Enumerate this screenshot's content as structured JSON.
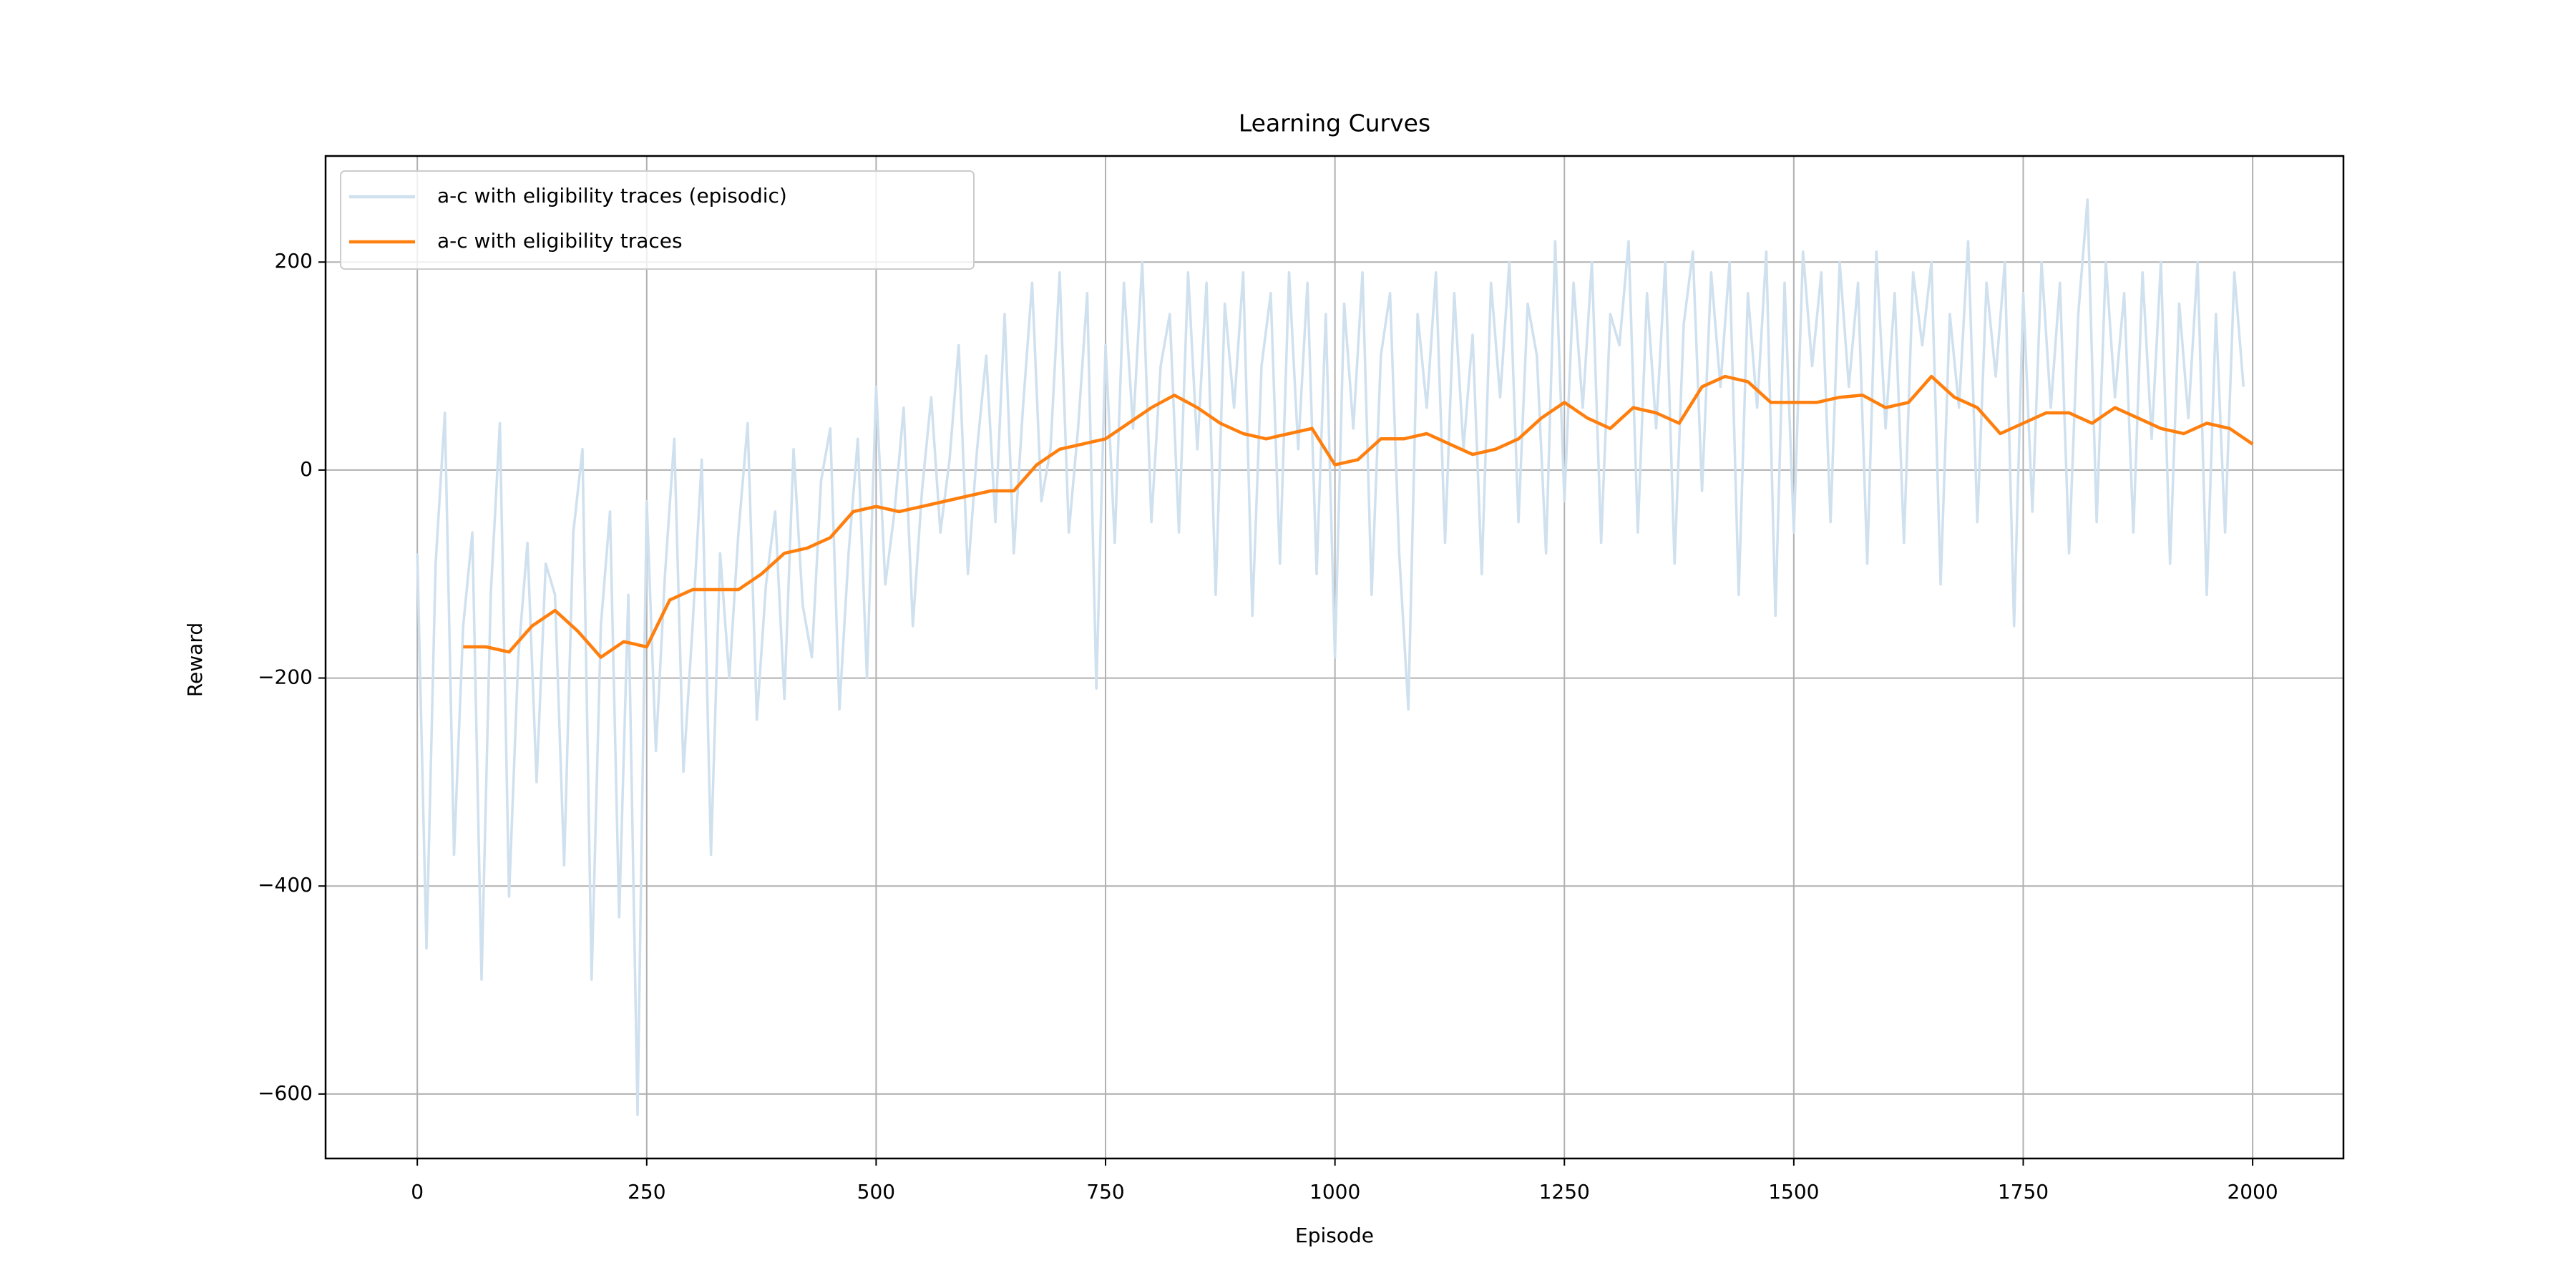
{
  "chart_data": {
    "type": "line",
    "title": "Learning Curves",
    "x_label": "Episode",
    "y_label": "Reward",
    "xlim": [
      -99.95,
      2098.95
    ],
    "ylim": [
      -662,
      302
    ],
    "xticks": [
      0,
      250,
      500,
      750,
      1000,
      1250,
      1500,
      1750,
      2000
    ],
    "yticks": [
      {
        "value": -600,
        "label": "−600"
      },
      {
        "value": -400,
        "label": "−400"
      },
      {
        "value": -200,
        "label": "−200"
      },
      0,
      200
    ],
    "grid": true,
    "legend": "upper left",
    "series": [
      {
        "name": "a-c with eligibility traces (episodic)",
        "color": "#cfe0ee",
        "x": [
          0,
          10,
          20,
          30,
          40,
          50,
          60,
          70,
          80,
          90,
          100,
          110,
          120,
          130,
          140,
          150,
          160,
          170,
          180,
          190,
          200,
          210,
          220,
          230,
          240,
          250,
          260,
          270,
          280,
          290,
          300,
          310,
          320,
          330,
          340,
          350,
          360,
          370,
          380,
          390,
          400,
          410,
          420,
          430,
          440,
          450,
          460,
          470,
          480,
          490,
          500,
          510,
          520,
          530,
          540,
          550,
          560,
          570,
          580,
          590,
          600,
          610,
          620,
          630,
          640,
          650,
          660,
          670,
          680,
          690,
          700,
          710,
          720,
          730,
          740,
          750,
          760,
          770,
          780,
          790,
          800,
          810,
          820,
          830,
          840,
          850,
          860,
          870,
          880,
          890,
          900,
          910,
          920,
          930,
          940,
          950,
          960,
          970,
          980,
          990,
          1000,
          1010,
          1020,
          1030,
          1040,
          1050,
          1060,
          1070,
          1080,
          1090,
          1100,
          1110,
          1120,
          1130,
          1140,
          1150,
          1160,
          1170,
          1180,
          1190,
          1200,
          1210,
          1220,
          1230,
          1240,
          1250,
          1260,
          1270,
          1280,
          1290,
          1300,
          1310,
          1320,
          1330,
          1340,
          1350,
          1360,
          1370,
          1380,
          1390,
          1400,
          1410,
          1420,
          1430,
          1440,
          1450,
          1460,
          1470,
          1480,
          1490,
          1500,
          1510,
          1520,
          1530,
          1540,
          1550,
          1560,
          1570,
          1580,
          1590,
          1600,
          1610,
          1620,
          1630,
          1640,
          1650,
          1660,
          1670,
          1680,
          1690,
          1700,
          1710,
          1720,
          1730,
          1740,
          1750,
          1760,
          1770,
          1780,
          1790,
          1800,
          1810,
          1820,
          1830,
          1840,
          1850,
          1860,
          1870,
          1880,
          1890,
          1900,
          1910,
          1920,
          1930,
          1940,
          1950,
          1960,
          1970,
          1980,
          1990
        ],
        "values": [
          -80,
          -460,
          -90,
          55,
          -370,
          -150,
          -60,
          -490,
          -120,
          45,
          -410,
          -180,
          -70,
          -300,
          -90,
          -120,
          -380,
          -60,
          20,
          -490,
          -150,
          -40,
          -430,
          -120,
          -620,
          -30,
          -270,
          -100,
          30,
          -290,
          -150,
          10,
          -370,
          -80,
          -200,
          -60,
          45,
          -240,
          -110,
          -40,
          -220,
          20,
          -130,
          -180,
          -10,
          40,
          -230,
          -80,
          30,
          -200,
          80,
          -110,
          -40,
          60,
          -150,
          -20,
          70,
          -60,
          10,
          120,
          -100,
          20,
          110,
          -50,
          150,
          -80,
          60,
          180,
          -30,
          20,
          190,
          -60,
          40,
          170,
          -210,
          120,
          -70,
          180,
          40,
          200,
          -50,
          100,
          150,
          -60,
          190,
          20,
          180,
          -120,
          160,
          60,
          190,
          -140,
          100,
          170,
          -90,
          190,
          20,
          180,
          -100,
          150,
          -180,
          160,
          40,
          190,
          -120,
          110,
          170,
          -80,
          -230,
          150,
          60,
          190,
          -70,
          170,
          20,
          130,
          -100,
          180,
          70,
          200,
          -50,
          160,
          110,
          -80,
          220,
          -30,
          180,
          60,
          200,
          -70,
          150,
          120,
          220,
          -60,
          170,
          40,
          200,
          -90,
          140,
          210,
          -20,
          190,
          80,
          200,
          -120,
          170,
          60,
          210,
          -140,
          180,
          -60,
          210,
          100,
          190,
          -50,
          200,
          80,
          180,
          -90,
          210,
          40,
          170,
          -70,
          190,
          120,
          200,
          -110,
          150,
          60,
          220,
          -50,
          180,
          90,
          200,
          -150,
          170,
          -40,
          200,
          60,
          180,
          -80,
          150,
          260,
          -50,
          200,
          70,
          170,
          -60,
          190,
          30,
          200,
          -90,
          160,
          50,
          200,
          -120,
          150,
          -60,
          190,
          80
        ]
      },
      {
        "name": "a-c with eligibility traces",
        "color": "#ff7f0e",
        "x": [
          50,
          75,
          100,
          125,
          150,
          175,
          200,
          225,
          250,
          275,
          300,
          325,
          350,
          375,
          400,
          425,
          450,
          475,
          500,
          525,
          550,
          575,
          600,
          625,
          650,
          675,
          700,
          725,
          750,
          775,
          800,
          825,
          850,
          875,
          900,
          925,
          950,
          975,
          1000,
          1025,
          1050,
          1075,
          1100,
          1125,
          1150,
          1175,
          1200,
          1225,
          1250,
          1275,
          1300,
          1325,
          1350,
          1375,
          1400,
          1425,
          1450,
          1475,
          1500,
          1525,
          1550,
          1575,
          1600,
          1625,
          1650,
          1675,
          1700,
          1725,
          1750,
          1775,
          1800,
          1825,
          1850,
          1875,
          1900,
          1925,
          1950,
          1975,
          2000
        ],
        "values": [
          -170,
          -170,
          -175,
          -150,
          -135,
          -155,
          -180,
          -165,
          -170,
          -125,
          -115,
          -115,
          -115,
          -100,
          -80,
          -75,
          -65,
          -40,
          -35,
          -40,
          -35,
          -30,
          -25,
          -20,
          -20,
          5,
          20,
          25,
          30,
          45,
          60,
          72,
          60,
          45,
          35,
          30,
          35,
          40,
          5,
          10,
          30,
          30,
          35,
          25,
          15,
          20,
          30,
          50,
          65,
          50,
          40,
          60,
          55,
          45,
          80,
          90,
          85,
          65,
          65,
          65,
          70,
          72,
          60,
          65,
          90,
          70,
          60,
          35,
          45,
          55,
          55,
          45,
          60,
          50,
          40,
          35,
          45,
          40,
          25
        ]
      }
    ]
  }
}
